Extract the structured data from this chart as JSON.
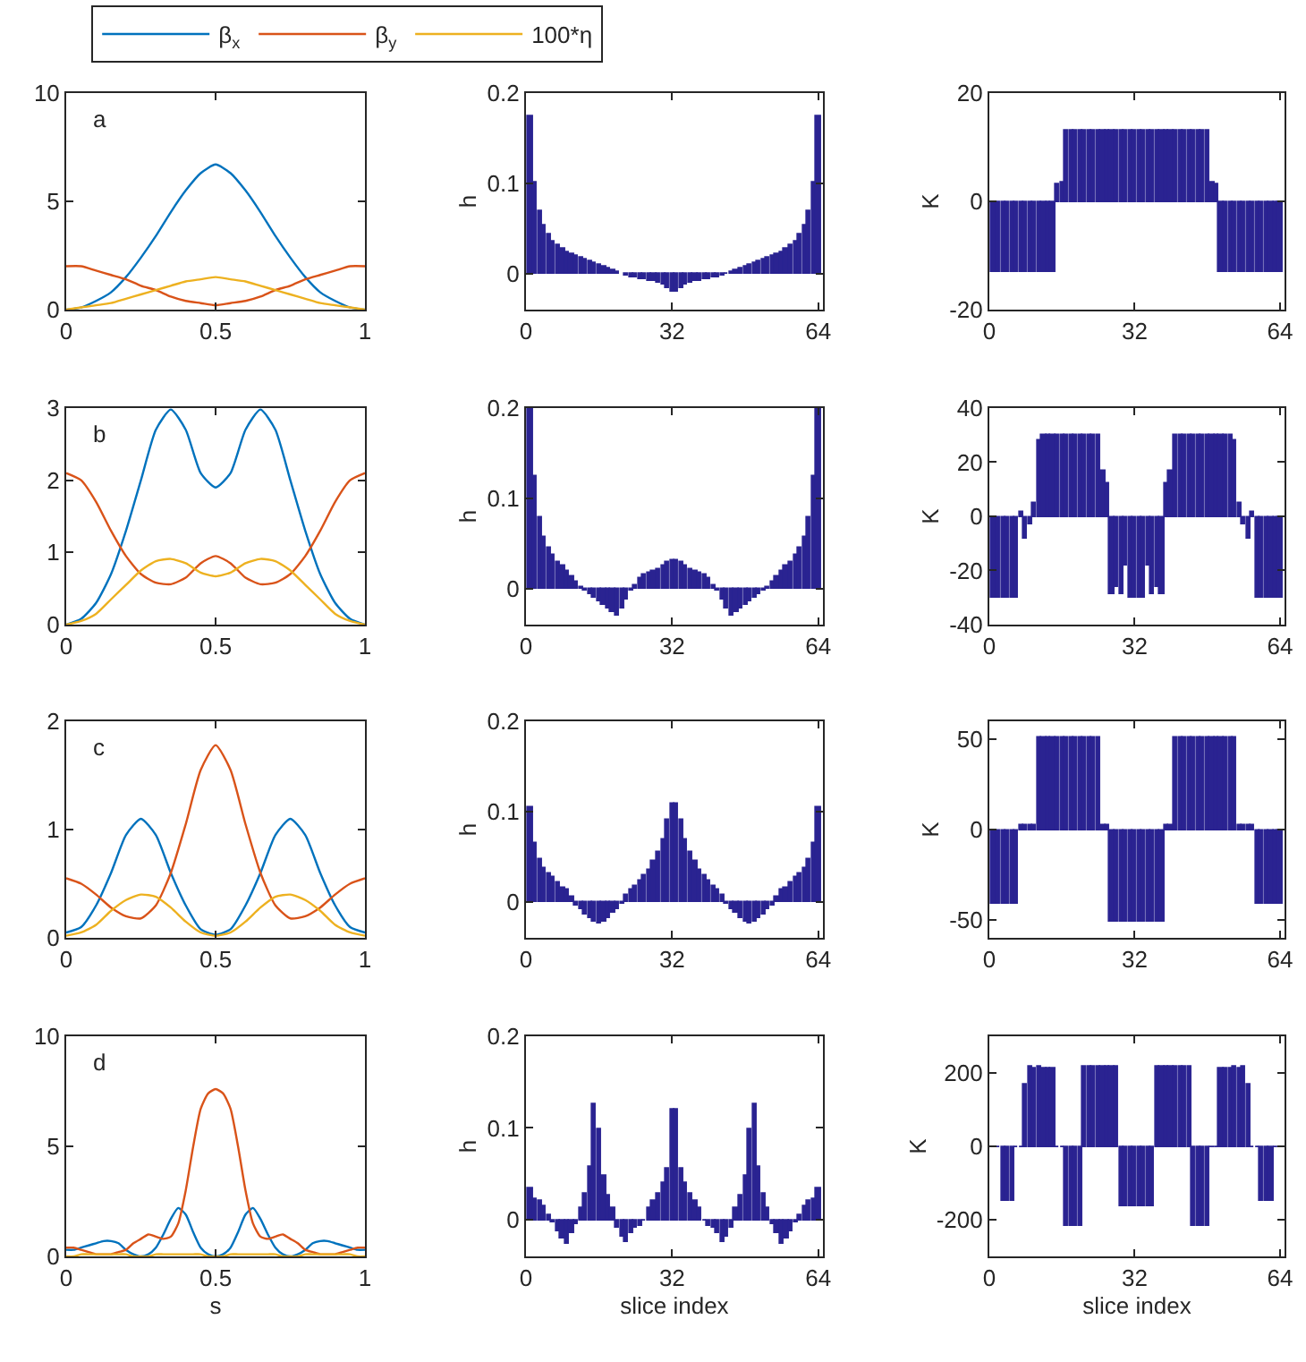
{
  "chart_data": [
    {
      "type": "line",
      "annotations": [
        "a"
      ],
      "legend": "top",
      "xlim": [
        0,
        1
      ],
      "xticks": [
        0,
        0.5,
        1
      ],
      "ylim": [
        0,
        10
      ],
      "yticks": [
        0,
        5,
        10
      ],
      "x": [
        0,
        0.05,
        0.1,
        0.15,
        0.2,
        0.25,
        0.3,
        0.35,
        0.4,
        0.45,
        0.5,
        0.55,
        0.6,
        0.65,
        0.7,
        0.75,
        0.8,
        0.85,
        0.9,
        0.95,
        1
      ],
      "series": [
        {
          "name": "β$_{x}$",
          "color": "#0072bd",
          "values": [
            0,
            0.1,
            0.4,
            0.8,
            1.5,
            2.4,
            3.4,
            4.5,
            5.5,
            6.3,
            6.7,
            6.3,
            5.5,
            4.5,
            3.4,
            2.4,
            1.5,
            0.8,
            0.4,
            0.1,
            0
          ]
        },
        {
          "name": "β$_{y}$",
          "color": "#d95319",
          "values": [
            2.0,
            2.0,
            1.8,
            1.6,
            1.4,
            1.1,
            0.9,
            0.6,
            0.4,
            0.3,
            0.2,
            0.3,
            0.4,
            0.6,
            0.9,
            1.1,
            1.4,
            1.6,
            1.8,
            2.0,
            2.0
          ]
        },
        {
          "name": "100*η",
          "color": "#edb120",
          "values": [
            0,
            0.1,
            0.2,
            0.3,
            0.5,
            0.7,
            0.9,
            1.1,
            1.3,
            1.4,
            1.5,
            1.4,
            1.3,
            1.1,
            0.9,
            0.7,
            0.5,
            0.3,
            0.2,
            0.1,
            0
          ]
        }
      ]
    },
    {
      "type": "bar",
      "ylabel": "h",
      "color": "#2a2391",
      "xlim": [
        0,
        65
      ],
      "xticks": [
        0,
        32,
        64
      ],
      "ylim": [
        -0.04,
        0.2
      ],
      "yticks": [
        0,
        0.1,
        0.2
      ],
      "x": [
        1,
        2,
        3,
        4,
        5,
        6,
        7,
        8,
        9,
        10,
        11,
        12,
        13,
        14,
        15,
        16,
        17,
        18,
        19,
        20,
        21,
        22,
        23,
        24,
        25,
        26,
        27,
        28,
        29,
        30,
        31,
        32,
        33,
        34,
        35,
        36,
        37,
        38,
        39,
        40,
        41,
        42,
        43,
        44,
        45,
        46,
        47,
        48,
        49,
        50,
        51,
        52,
        53,
        54,
        55,
        56,
        57,
        58,
        59,
        60,
        61,
        62,
        63,
        64
      ],
      "values": [
        0.175,
        0.1,
        0.07,
        0.053,
        0.043,
        0.036,
        0.031,
        0.027,
        0.024,
        0.021,
        0.019,
        0.017,
        0.015,
        0.013,
        0.011,
        0.009,
        0.007,
        0.005,
        0.003,
        0.001,
        null,
        -0.003,
        -0.004,
        -0.005,
        -0.006,
        -0.007,
        -0.008,
        -0.009,
        -0.011,
        -0.013,
        -0.016,
        -0.02,
        -0.02,
        -0.016,
        -0.013,
        -0.011,
        -0.009,
        -0.008,
        -0.007,
        -0.006,
        -0.005,
        -0.004,
        -0.003,
        -0.001,
        0.001,
        0.003,
        0.005,
        0.007,
        0.009,
        0.011,
        0.013,
        0.015,
        0.017,
        0.019,
        0.021,
        0.024,
        0.027,
        0.031,
        0.036,
        0.043,
        0.053,
        0.07,
        0.1,
        0.175
      ]
    },
    {
      "type": "bar",
      "ylabel": "K",
      "color": "#2a2391",
      "xlim": [
        0,
        65
      ],
      "xticks": [
        0,
        32,
        64
      ],
      "ylim": [
        -20,
        20
      ],
      "yticks": [
        -20,
        0,
        20
      ],
      "x": [
        1,
        2,
        3,
        4,
        5,
        6,
        7,
        8,
        9,
        10,
        11,
        12,
        13,
        14,
        15,
        16,
        17,
        18,
        19,
        20,
        21,
        22,
        23,
        24,
        25,
        26,
        27,
        28,
        29,
        30,
        31,
        32,
        33,
        34,
        35,
        36,
        37,
        38,
        39,
        40,
        41,
        42,
        43,
        44,
        45,
        46,
        47,
        48,
        49,
        50,
        51,
        52,
        53,
        54,
        55,
        56,
        57,
        58,
        59,
        60,
        61,
        62,
        63,
        64
      ],
      "values": [
        -13,
        -13,
        -13,
        -13,
        -13,
        -13,
        -13,
        -13,
        -13,
        -13,
        -13,
        -13,
        -13,
        -13,
        3,
        3.5,
        13,
        13,
        13,
        13,
        13,
        13,
        13,
        13,
        13,
        13,
        13,
        13,
        13,
        13,
        13,
        13,
        13,
        13,
        13,
        13,
        13,
        13,
        13,
        13,
        13,
        13,
        13,
        13,
        13,
        13,
        13,
        13,
        3.5,
        3,
        -13,
        -13,
        -13,
        -13,
        -13,
        -13,
        -13,
        -13,
        -13,
        -13,
        -13,
        -13,
        -13,
        -13
      ]
    },
    {
      "type": "line",
      "annotations": [
        "b"
      ],
      "xlim": [
        0,
        1
      ],
      "xticks": [
        0,
        0.5,
        1
      ],
      "ylim": [
        0,
        3
      ],
      "yticks": [
        0,
        1,
        2,
        3
      ],
      "x": [
        0,
        0.05,
        0.1,
        0.15,
        0.2,
        0.25,
        0.3,
        0.35,
        0.4,
        0.45,
        0.5,
        0.55,
        0.6,
        0.65,
        0.7,
        0.75,
        0.8,
        0.85,
        0.9,
        0.95,
        1
      ],
      "series": [
        {
          "color": "#0072bd",
          "values": [
            0,
            0.08,
            0.3,
            0.7,
            1.3,
            2.0,
            2.7,
            2.98,
            2.7,
            2.1,
            1.9,
            2.1,
            2.7,
            2.98,
            2.7,
            2.0,
            1.3,
            0.7,
            0.3,
            0.08,
            0
          ]
        },
        {
          "color": "#d95319",
          "values": [
            2.1,
            2.0,
            1.7,
            1.3,
            0.95,
            0.7,
            0.58,
            0.56,
            0.65,
            0.85,
            0.95,
            0.85,
            0.65,
            0.56,
            0.58,
            0.7,
            0.95,
            1.3,
            1.7,
            2.0,
            2.1
          ]
        },
        {
          "color": "#edb120",
          "values": [
            0,
            0.05,
            0.15,
            0.35,
            0.55,
            0.75,
            0.88,
            0.91,
            0.85,
            0.72,
            0.67,
            0.72,
            0.85,
            0.91,
            0.88,
            0.75,
            0.55,
            0.35,
            0.15,
            0.05,
            0
          ]
        }
      ]
    },
    {
      "type": "bar",
      "ylabel": "h",
      "color": "#2a2391",
      "xlim": [
        0,
        65
      ],
      "xticks": [
        0,
        32,
        64
      ],
      "ylim": [
        -0.04,
        0.2
      ],
      "yticks": [
        0,
        0.1,
        0.2
      ],
      "x": [
        1,
        2,
        3,
        4,
        5,
        6,
        7,
        8,
        9,
        10,
        11,
        12,
        13,
        14,
        15,
        16,
        17,
        18,
        19,
        20,
        21,
        22,
        23,
        24,
        25,
        26,
        27,
        28,
        29,
        30,
        31,
        32,
        33,
        34,
        35,
        36,
        37,
        38,
        39,
        40,
        41,
        42,
        43,
        44,
        45,
        46,
        47,
        48,
        49,
        50,
        51,
        52,
        53,
        54,
        55,
        56,
        57,
        58,
        59,
        60,
        61,
        62,
        63,
        64
      ],
      "values": [
        0.2,
        0.125,
        0.08,
        0.058,
        0.046,
        0.037,
        0.03,
        0.025,
        0.019,
        0.013,
        0.007,
        0.002,
        -0.003,
        -0.007,
        -0.011,
        -0.015,
        -0.019,
        -0.023,
        -0.027,
        -0.03,
        -0.022,
        -0.012,
        -0.003,
        0.003,
        0.012,
        0.015,
        0.017,
        0.019,
        0.021,
        0.025,
        0.03,
        0.032,
        0.032,
        0.03,
        0.025,
        0.021,
        0.019,
        0.017,
        0.015,
        0.012,
        0.003,
        -0.003,
        -0.012,
        -0.022,
        -0.03,
        -0.027,
        -0.023,
        -0.019,
        -0.015,
        -0.011,
        -0.007,
        -0.003,
        0.002,
        0.007,
        0.013,
        0.019,
        0.025,
        0.03,
        0.037,
        0.046,
        0.058,
        0.08,
        0.125,
        0.2
      ]
    },
    {
      "type": "bar",
      "ylabel": "K",
      "color": "#2a2391",
      "xlim": [
        0,
        65
      ],
      "xticks": [
        0,
        32,
        64
      ],
      "ylim": [
        -40,
        40
      ],
      "yticks": [
        -40,
        -20,
        0,
        20,
        40
      ],
      "x": [
        1,
        2,
        3,
        4,
        5,
        6,
        7,
        8,
        9,
        10,
        11,
        12,
        13,
        14,
        15,
        16,
        17,
        18,
        19,
        20,
        21,
        22,
        23,
        24,
        25,
        26,
        27,
        28,
        29,
        30,
        31,
        32,
        33,
        34,
        35,
        36,
        37,
        38,
        39,
        40,
        41,
        42,
        43,
        44,
        45,
        46,
        47,
        48,
        49,
        50,
        51,
        52,
        53,
        54,
        55,
        56,
        57,
        58,
        59,
        60,
        61,
        62,
        63,
        64
      ],
      "values": [
        -30,
        -30,
        -30,
        -30,
        -30,
        -30,
        1.5,
        -8,
        -3,
        5,
        28,
        30,
        30,
        30,
        30,
        30,
        30,
        30,
        30,
        30,
        30,
        30,
        30,
        30,
        17,
        12,
        -29,
        -26,
        -29,
        -18,
        -30,
        -30,
        -30,
        -30,
        -18,
        -29,
        -26,
        -29,
        12,
        17,
        30,
        30,
        30,
        30,
        30,
        30,
        30,
        30,
        30,
        30,
        30,
        30,
        30,
        28,
        5,
        -3,
        -8,
        1.5,
        -30,
        -30,
        -30,
        -30,
        -30,
        -30
      ]
    },
    {
      "type": "line",
      "annotations": [
        "c"
      ],
      "xlim": [
        0,
        1
      ],
      "xticks": [
        0,
        0.5,
        1
      ],
      "ylim": [
        0,
        2
      ],
      "yticks": [
        0,
        1,
        2
      ],
      "x": [
        0,
        0.05,
        0.1,
        0.15,
        0.2,
        0.25,
        0.3,
        0.35,
        0.4,
        0.45,
        0.5,
        0.55,
        0.6,
        0.65,
        0.7,
        0.75,
        0.8,
        0.85,
        0.9,
        0.95,
        1
      ],
      "series": [
        {
          "color": "#0072bd",
          "values": [
            0.05,
            0.1,
            0.3,
            0.6,
            0.95,
            1.1,
            0.95,
            0.6,
            0.3,
            0.08,
            0.03,
            0.08,
            0.3,
            0.6,
            0.95,
            1.1,
            0.95,
            0.6,
            0.3,
            0.1,
            0.05
          ]
        },
        {
          "color": "#d95319",
          "values": [
            0.55,
            0.5,
            0.4,
            0.28,
            0.2,
            0.18,
            0.3,
            0.6,
            1.05,
            1.55,
            1.78,
            1.55,
            1.05,
            0.6,
            0.3,
            0.18,
            0.2,
            0.28,
            0.4,
            0.5,
            0.55
          ]
        },
        {
          "color": "#edb120",
          "values": [
            0.02,
            0.05,
            0.12,
            0.25,
            0.35,
            0.4,
            0.38,
            0.28,
            0.15,
            0.05,
            0.02,
            0.05,
            0.15,
            0.28,
            0.38,
            0.4,
            0.35,
            0.25,
            0.12,
            0.05,
            0.02
          ]
        }
      ]
    },
    {
      "type": "bar",
      "ylabel": "h",
      "color": "#2a2391",
      "xlim": [
        0,
        65
      ],
      "xticks": [
        0,
        32,
        64
      ],
      "ylim": [
        -0.04,
        0.2
      ],
      "yticks": [
        0,
        0.1,
        0.2
      ],
      "x": [
        1,
        2,
        3,
        4,
        5,
        6,
        7,
        8,
        9,
        10,
        11,
        12,
        13,
        14,
        15,
        16,
        17,
        18,
        19,
        20,
        21,
        22,
        23,
        24,
        25,
        26,
        27,
        28,
        29,
        30,
        31,
        32,
        33,
        34,
        35,
        36,
        37,
        38,
        39,
        40,
        41,
        42,
        43,
        44,
        45,
        46,
        47,
        48,
        49,
        50,
        51,
        52,
        53,
        54,
        55,
        56,
        57,
        58,
        59,
        60,
        61,
        62,
        63,
        64
      ],
      "values": [
        0.105,
        0.065,
        0.047,
        0.037,
        0.032,
        0.027,
        0.021,
        0.016,
        0.013,
        0.005,
        -0.004,
        -0.009,
        -0.014,
        -0.018,
        -0.022,
        -0.025,
        -0.022,
        -0.018,
        -0.013,
        -0.008,
        -0.003,
        0.007,
        0.013,
        0.018,
        0.024,
        0.03,
        0.036,
        0.045,
        0.055,
        0.07,
        0.09,
        0.108,
        0.108,
        0.09,
        0.07,
        0.055,
        0.045,
        0.036,
        0.03,
        0.024,
        0.018,
        0.013,
        0.007,
        -0.003,
        -0.008,
        -0.013,
        -0.018,
        -0.022,
        -0.025,
        -0.022,
        -0.018,
        -0.014,
        -0.009,
        -0.004,
        0.005,
        0.013,
        0.016,
        0.021,
        0.027,
        0.032,
        0.037,
        0.047,
        0.065,
        0.105
      ]
    },
    {
      "type": "bar",
      "ylabel": "K",
      "color": "#2a2391",
      "xlim": [
        0,
        65
      ],
      "xticks": [
        0,
        32,
        64
      ],
      "ylim": [
        -60,
        60
      ],
      "yticks": [
        -50,
        0,
        50
      ],
      "x": [
        1,
        2,
        3,
        4,
        5,
        6,
        7,
        8,
        9,
        10,
        11,
        12,
        13,
        14,
        15,
        16,
        17,
        18,
        19,
        20,
        21,
        22,
        23,
        24,
        25,
        26,
        27,
        28,
        29,
        30,
        31,
        32,
        33,
        34,
        35,
        36,
        37,
        38,
        39,
        40,
        41,
        42,
        43,
        44,
        45,
        46,
        47,
        48,
        49,
        50,
        51,
        52,
        53,
        54,
        55,
        56,
        57,
        58,
        59,
        60,
        61,
        62,
        63,
        64
      ],
      "values": [
        -41,
        -41,
        -41,
        -41,
        -41,
        -41,
        2,
        2,
        2,
        2,
        51,
        51,
        51,
        51,
        51,
        51,
        51,
        51,
        51,
        51,
        51,
        51,
        51,
        51,
        2,
        2,
        -51,
        -51,
        -51,
        -51,
        -51,
        -51,
        -51,
        -51,
        -51,
        -51,
        -51,
        -51,
        2,
        2,
        51,
        51,
        51,
        51,
        51,
        51,
        51,
        51,
        51,
        51,
        51,
        51,
        51,
        51,
        2,
        2,
        2,
        2,
        -41,
        -41,
        -41,
        -41,
        -41,
        -41
      ]
    },
    {
      "type": "line",
      "annotations": [
        "d"
      ],
      "xlabel": "s",
      "xlim": [
        0,
        1
      ],
      "xticks": [
        0,
        0.5,
        1
      ],
      "ylim": [
        0,
        10
      ],
      "yticks": [
        0,
        5,
        10
      ],
      "x": [
        0,
        0.025,
        0.05,
        0.075,
        0.1,
        0.125,
        0.15,
        0.175,
        0.2,
        0.225,
        0.25,
        0.275,
        0.3,
        0.325,
        0.35,
        0.375,
        0.4,
        0.425,
        0.45,
        0.475,
        0.5,
        0.525,
        0.55,
        0.575,
        0.6,
        0.625,
        0.65,
        0.675,
        0.7,
        0.725,
        0.75,
        0.775,
        0.8,
        0.825,
        0.85,
        0.875,
        0.9,
        0.925,
        0.95,
        0.975,
        1
      ],
      "series": [
        {
          "color": "#0072bd",
          "values": [
            0.3,
            0.3,
            0.4,
            0.5,
            0.6,
            0.7,
            0.7,
            0.6,
            0.3,
            0.1,
            0,
            0.1,
            0.4,
            1.0,
            1.7,
            2.2,
            1.9,
            1.1,
            0.4,
            0.1,
            0,
            0.1,
            0.4,
            1.1,
            1.9,
            2.2,
            1.7,
            1.0,
            0.4,
            0.1,
            0,
            0.1,
            0.3,
            0.6,
            0.7,
            0.7,
            0.6,
            0.5,
            0.4,
            0.3,
            0.3
          ]
        },
        {
          "color": "#d95319",
          "values": [
            0.4,
            0.4,
            0.3,
            0.2,
            0.1,
            0.1,
            0.1,
            0.2,
            0.3,
            0.6,
            0.8,
            1.0,
            0.9,
            0.8,
            0.9,
            1.5,
            3.0,
            5.0,
            6.7,
            7.4,
            7.6,
            7.4,
            6.7,
            5.0,
            3.0,
            1.5,
            0.9,
            0.8,
            0.9,
            1.0,
            0.8,
            0.6,
            0.3,
            0.2,
            0.1,
            0.1,
            0.1,
            0.2,
            0.3,
            0.4,
            0.4
          ]
        },
        {
          "color": "#edb120",
          "values": [
            0,
            0,
            0.1,
            0.1,
            0.1,
            0.1,
            0.1,
            0.1,
            0.1,
            0,
            0,
            0,
            0.1,
            0.1,
            0.1,
            0.1,
            0.1,
            0.1,
            0.1,
            0,
            0,
            0,
            0.1,
            0.1,
            0.1,
            0.1,
            0.1,
            0.1,
            0.1,
            0,
            0,
            0,
            0.1,
            0.1,
            0.1,
            0.1,
            0.1,
            0.1,
            0.1,
            0,
            0
          ]
        }
      ]
    },
    {
      "type": "bar",
      "ylabel": "h",
      "xlabel": "slice index",
      "color": "#2a2391",
      "xlim": [
        0,
        65
      ],
      "xticks": [
        0,
        32,
        64
      ],
      "ylim": [
        -0.04,
        0.2
      ],
      "yticks": [
        0,
        0.1,
        0.2
      ],
      "x": [
        1,
        2,
        3,
        4,
        5,
        6,
        7,
        8,
        9,
        10,
        11,
        12,
        13,
        14,
        15,
        16,
        17,
        18,
        19,
        20,
        21,
        22,
        23,
        24,
        25,
        26,
        27,
        28,
        29,
        30,
        31,
        32,
        33,
        34,
        35,
        36,
        37,
        38,
        39,
        40,
        41,
        42,
        43,
        44,
        45,
        46,
        47,
        48,
        49,
        50,
        51,
        52,
        53,
        54,
        55,
        56,
        57,
        58,
        59,
        60,
        61,
        62,
        63,
        64
      ],
      "values": [
        0.035,
        0.022,
        0.02,
        0.015,
        0.005,
        -0.003,
        -0.012,
        -0.02,
        -0.026,
        -0.015,
        -0.005,
        0.013,
        0.028,
        0.058,
        0.125,
        0.098,
        0.048,
        0.027,
        0.012,
        -0.008,
        -0.018,
        -0.024,
        -0.015,
        -0.008,
        -0.007,
        0.0,
        0.012,
        0.02,
        0.028,
        0.04,
        0.055,
        0.12,
        0.12,
        0.055,
        0.04,
        0.028,
        0.02,
        0.012,
        0.0,
        -0.007,
        -0.008,
        -0.015,
        -0.024,
        -0.018,
        -0.008,
        0.012,
        0.027,
        0.048,
        0.098,
        0.125,
        0.058,
        0.028,
        0.013,
        -0.005,
        -0.015,
        -0.026,
        -0.02,
        -0.012,
        -0.003,
        0.005,
        0.015,
        0.02,
        0.022,
        0.035
      ]
    },
    {
      "type": "bar",
      "ylabel": "K",
      "xlabel": "slice index",
      "color": "#2a2391",
      "xlim": [
        0,
        65
      ],
      "xticks": [
        0,
        32,
        64
      ],
      "ylim": [
        -300,
        300
      ],
      "yticks": [
        -200,
        0,
        200
      ],
      "x": [
        1,
        2,
        3,
        4,
        5,
        6,
        7,
        8,
        9,
        10,
        11,
        12,
        13,
        14,
        15,
        16,
        17,
        18,
        19,
        20,
        21,
        22,
        23,
        24,
        25,
        26,
        27,
        28,
        29,
        30,
        31,
        32,
        33,
        34,
        35,
        36,
        37,
        38,
        39,
        40,
        41,
        42,
        43,
        44,
        45,
        46,
        47,
        48,
        49,
        50,
        51,
        52,
        53,
        54,
        55,
        56,
        57,
        58,
        59,
        60,
        61,
        62,
        63,
        64
      ],
      "values": [
        0,
        0,
        -150,
        -150,
        -150,
        0,
        0,
        170,
        215,
        212,
        215,
        212,
        210,
        212,
        0,
        0,
        -215,
        -215,
        -215,
        -215,
        215,
        215,
        215,
        215,
        215,
        215,
        215,
        215,
        -165,
        -165,
        -165,
        -165,
        -165,
        -165,
        -165,
        -165,
        215,
        215,
        215,
        215,
        215,
        215,
        215,
        215,
        -215,
        -215,
        -215,
        -215,
        0,
        0,
        212,
        210,
        212,
        215,
        212,
        215,
        170,
        0,
        0,
        -150,
        -150,
        -150,
        0,
        0
      ]
    }
  ]
}
